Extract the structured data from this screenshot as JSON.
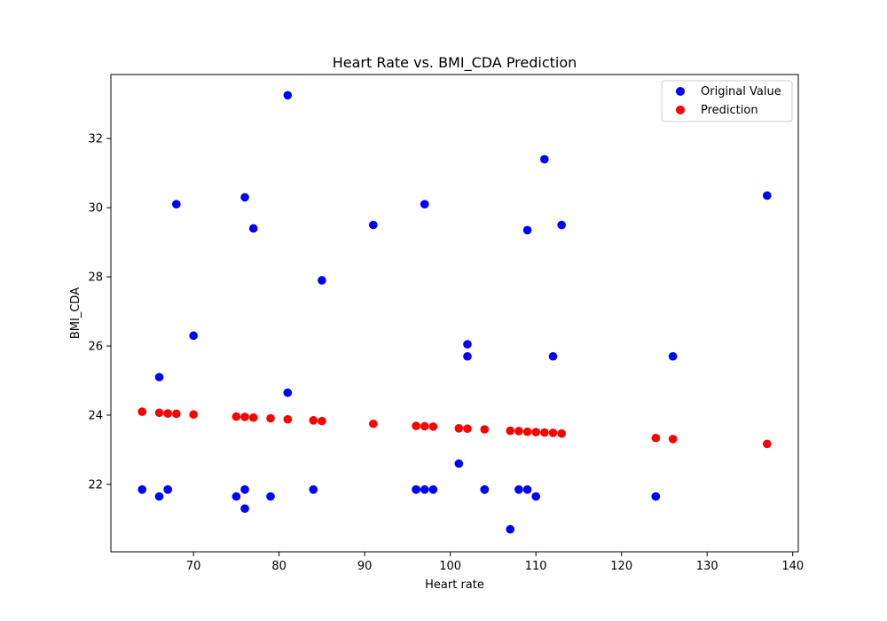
{
  "chart_data": {
    "type": "scatter",
    "title": "Heart Rate vs. BMI_CDA Prediction",
    "xlabel": "Heart rate",
    "ylabel": "BMI_CDA",
    "xlim": [
      60.35,
      140.65
    ],
    "ylim": [
      20.05,
      33.85
    ],
    "xticks": [
      70,
      80,
      90,
      100,
      110,
      120,
      130,
      140
    ],
    "yticks": [
      22,
      24,
      26,
      28,
      30,
      32
    ],
    "grid": false,
    "legend_position": "top-right",
    "series": [
      {
        "name": "Original Value",
        "color": "#0000ff",
        "points": [
          [
            64,
            21.85
          ],
          [
            66,
            21.65
          ],
          [
            66,
            25.1
          ],
          [
            67,
            21.85
          ],
          [
            67,
            21.85
          ],
          [
            68,
            30.1
          ],
          [
            70,
            26.3
          ],
          [
            75,
            21.65
          ],
          [
            76,
            21.85
          ],
          [
            76,
            21.3
          ],
          [
            76,
            30.3
          ],
          [
            77,
            29.4
          ],
          [
            79,
            21.65
          ],
          [
            81,
            24.65
          ],
          [
            81,
            33.25
          ],
          [
            84,
            21.85
          ],
          [
            85,
            27.9
          ],
          [
            91,
            29.5
          ],
          [
            96,
            21.85
          ],
          [
            96,
            21.85
          ],
          [
            97,
            30.1
          ],
          [
            97,
            21.85
          ],
          [
            98,
            21.85
          ],
          [
            101,
            22.6
          ],
          [
            102,
            26.05
          ],
          [
            102,
            25.7
          ],
          [
            104,
            21.85
          ],
          [
            104,
            21.85
          ],
          [
            107,
            20.7
          ],
          [
            108,
            21.85
          ],
          [
            109,
            29.35
          ],
          [
            109,
            21.85
          ],
          [
            110,
            21.65
          ],
          [
            111,
            31.4
          ],
          [
            112,
            25.7
          ],
          [
            113,
            29.5
          ],
          [
            124,
            21.65
          ],
          [
            124,
            21.65
          ],
          [
            126,
            25.7
          ],
          [
            137,
            30.35
          ]
        ]
      },
      {
        "name": "Prediction",
        "color": "#ff0000",
        "points": [
          [
            64,
            24.1
          ],
          [
            66,
            24.07
          ],
          [
            67,
            24.05
          ],
          [
            68,
            24.04
          ],
          [
            70,
            24.02
          ],
          [
            75,
            23.96
          ],
          [
            76,
            23.95
          ],
          [
            77,
            23.93
          ],
          [
            79,
            23.91
          ],
          [
            81,
            23.88
          ],
          [
            84,
            23.85
          ],
          [
            85,
            23.83
          ],
          [
            91,
            23.75
          ],
          [
            96,
            23.69
          ],
          [
            97,
            23.68
          ],
          [
            98,
            23.67
          ],
          [
            101,
            23.62
          ],
          [
            102,
            23.61
          ],
          [
            104,
            23.59
          ],
          [
            107,
            23.55
          ],
          [
            108,
            23.54
          ],
          [
            109,
            23.52
          ],
          [
            110,
            23.51
          ],
          [
            111,
            23.5
          ],
          [
            112,
            23.49
          ],
          [
            113,
            23.47
          ],
          [
            124,
            23.34
          ],
          [
            126,
            23.31
          ],
          [
            137,
            23.17
          ]
        ]
      }
    ]
  }
}
